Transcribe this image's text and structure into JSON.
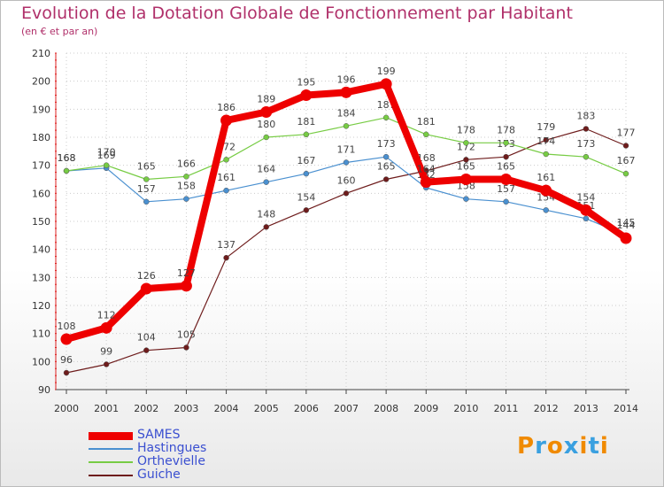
{
  "chart_data": {
    "type": "line",
    "title": "Evolution de la Dotation Globale de Fonctionnement par Habitant",
    "subtitle": "(en € et par an)",
    "xlabel": "",
    "ylabel": "",
    "x": [
      "2000",
      "2001",
      "2002",
      "2003",
      "2004",
      "2005",
      "2006",
      "2007",
      "2008",
      "2009",
      "2010",
      "2011",
      "2012",
      "2013",
      "2014"
    ],
    "ylim": [
      90,
      210
    ],
    "yticks": [
      90,
      100,
      110,
      120,
      130,
      140,
      150,
      160,
      170,
      180,
      190,
      200,
      210
    ],
    "grid": true,
    "legend_position": "bottom-left",
    "series": [
      {
        "name": "SAMES",
        "color": "#ee0000",
        "values": [
          108,
          112,
          126,
          127,
          186,
          189,
          195,
          196,
          199,
          164,
          165,
          165,
          161,
          154,
          144
        ]
      },
      {
        "name": "Hastingues",
        "color": "#4a90d0",
        "values": [
          168,
          169,
          157,
          158,
          161,
          164,
          167,
          171,
          173,
          162,
          158,
          157,
          154,
          151,
          145
        ]
      },
      {
        "name": "Orthevielle",
        "color": "#77cc44",
        "values": [
          168,
          170,
          165,
          166,
          172,
          180,
          181,
          184,
          187,
          181,
          178,
          178,
          174,
          173,
          167
        ]
      },
      {
        "name": "Guiche",
        "color": "#6e1c1c",
        "values": [
          96,
          99,
          104,
          105,
          137,
          148,
          154,
          160,
          165,
          168,
          172,
          173,
          179,
          183,
          177
        ]
      }
    ]
  },
  "logo": {
    "letters": [
      "P",
      "r",
      "o",
      "x",
      "i",
      "t",
      "i"
    ],
    "colors": [
      "#f08a00",
      "#3aa0e0",
      "#f08a00",
      "#3aa0e0",
      "#f08a00",
      "#3aa0e0",
      "#f08a00"
    ]
  }
}
